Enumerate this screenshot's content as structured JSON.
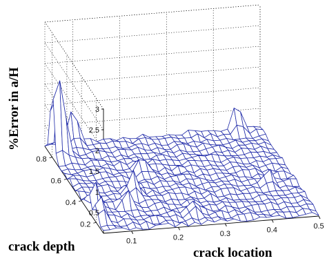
{
  "chart_data": {
    "type": "surface",
    "title": "",
    "zlabel": "%Error in a/H",
    "xlabel": "crack location",
    "ylabel": "crack depth",
    "x_ticks": [
      "0.1",
      "0.2",
      "0.3",
      "0.4",
      "0.5"
    ],
    "y_ticks": [
      "0.2",
      "0.4",
      "0.6",
      "0.8"
    ],
    "z_ticks": [
      "0.5",
      "1",
      "1.5",
      "2",
      "2.5",
      "3"
    ],
    "xlim": [
      0.04,
      0.5
    ],
    "ylim": [
      0.1,
      0.9
    ],
    "zlim": [
      0,
      3
    ],
    "grid": true,
    "surface_color": "#1f2aa8",
    "baseline_noise": 0.12,
    "peaks": [
      {
        "x": 0.045,
        "y": 0.8,
        "z": 1.7
      },
      {
        "x": 0.06,
        "y": 0.8,
        "z": 1.45
      },
      {
        "x": 0.05,
        "y": 0.3,
        "z": 0.75
      },
      {
        "x": 0.05,
        "y": 0.2,
        "z": 0.6
      },
      {
        "x": 0.1,
        "y": 0.9,
        "z": 0.8
      },
      {
        "x": 0.15,
        "y": 0.4,
        "z": 0.55
      },
      {
        "x": 0.12,
        "y": 0.3,
        "z": 0.45
      },
      {
        "x": 0.25,
        "y": 0.2,
        "z": 0.3
      },
      {
        "x": 0.2,
        "y": 0.6,
        "z": 0.3
      },
      {
        "x": 0.45,
        "y": 0.9,
        "z": 0.65
      },
      {
        "x": 0.44,
        "y": 0.4,
        "z": 0.35
      }
    ]
  }
}
